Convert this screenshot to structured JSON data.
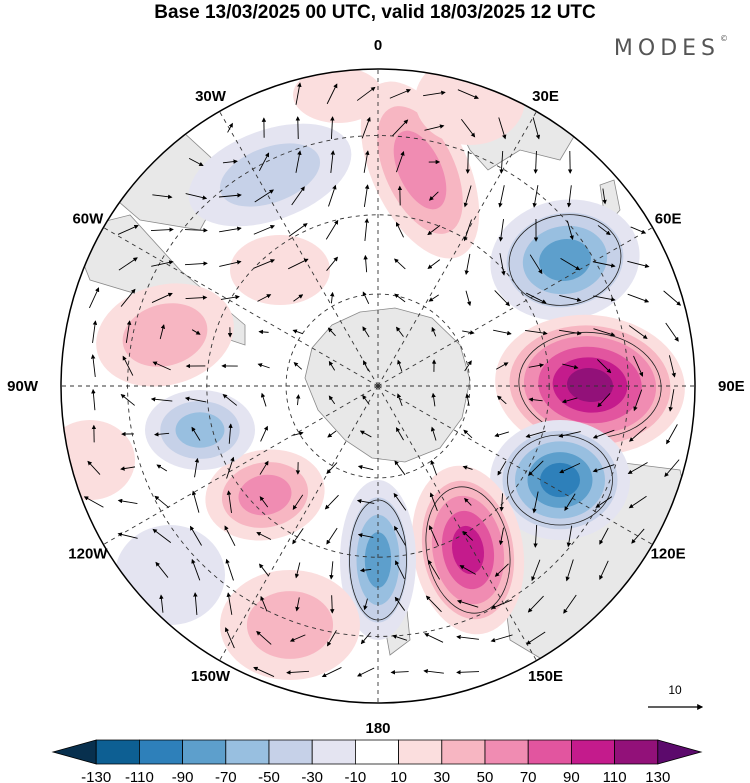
{
  "title": "Base 13/03/2025 00 UTC, valid 18/03/2025 12 UTC",
  "brand": "MODES",
  "brand_mark": "©",
  "longitude_labels": [
    "0",
    "30E",
    "60E",
    "90E",
    "120E",
    "150E",
    "180",
    "150W",
    "120W",
    "90W",
    "60W",
    "30W"
  ],
  "reference_vector_label": "10",
  "colorbar": {
    "labels": [
      "-130",
      "-110",
      "-90",
      "-70",
      "-50",
      "-30",
      "-10",
      "10",
      "30",
      "50",
      "70",
      "90",
      "110",
      "130"
    ],
    "colors": [
      "#08304e",
      "#0d5f93",
      "#2e80ba",
      "#5d9fcc",
      "#98bfe0",
      "#c6d1e8",
      "#e4e4f1",
      "#ffffff",
      "#fbdede",
      "#f7b6c2",
      "#f08cb2",
      "#e2559f",
      "#c41b8c",
      "#921179",
      "#5c0a6c"
    ]
  },
  "colors": {
    "land": "#e4e4e4",
    "coast": "#8a8a8a",
    "grid": "#333333"
  }
}
